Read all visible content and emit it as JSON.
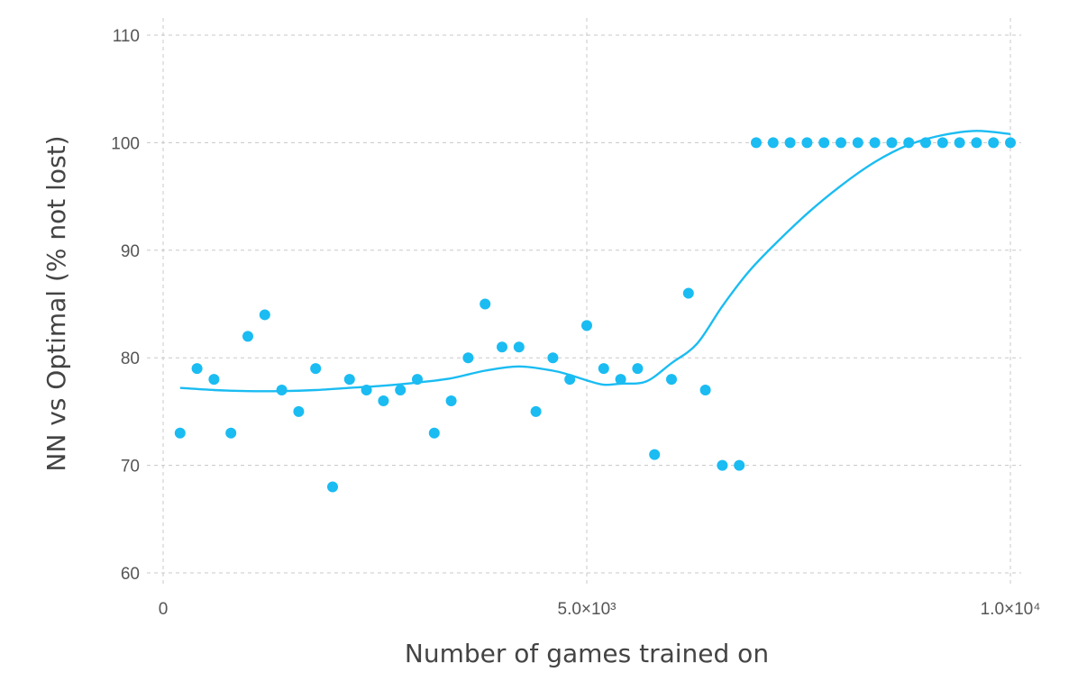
{
  "chart_data": {
    "type": "scatter",
    "xlabel": "Number of games trained on",
    "ylabel": "NN vs Optimal (% not lost)",
    "xlim": [
      0,
      10000
    ],
    "ylim": [
      60,
      110
    ],
    "x_ticks": [
      {
        "value": 0,
        "label": "0"
      },
      {
        "value": 5000,
        "label": "5.0×10³"
      },
      {
        "value": 10000,
        "label": "1.0×10⁴"
      }
    ],
    "y_ticks": [
      {
        "value": 60,
        "label": "60"
      },
      {
        "value": 70,
        "label": "70"
      },
      {
        "value": 80,
        "label": "80"
      },
      {
        "value": 90,
        "label": "90"
      },
      {
        "value": 100,
        "label": "100"
      },
      {
        "value": 110,
        "label": "110"
      }
    ],
    "grid": true,
    "color": "#1abcf2",
    "series": [
      {
        "kind": "points",
        "x": [
          200,
          400,
          600,
          800,
          1000,
          1200,
          1400,
          1600,
          1800,
          2000,
          2200,
          2400,
          2600,
          2800,
          3000,
          3200,
          3400,
          3600,
          3800,
          4000,
          4200,
          4400,
          4600,
          4800,
          5000,
          5200,
          5400,
          5600,
          5800,
          6000,
          6200,
          6400,
          6600,
          6800,
          7000,
          7200,
          7400,
          7600,
          7800,
          8000,
          8200,
          8400,
          8600,
          8800,
          9000,
          9200,
          9400,
          9600,
          9800,
          10000
        ],
        "y": [
          73,
          79,
          78,
          73,
          82,
          84,
          77,
          75,
          79,
          68,
          78,
          77,
          76,
          77,
          78,
          73,
          76,
          80,
          85,
          81,
          81,
          75,
          80,
          78,
          83,
          79,
          78,
          79,
          71,
          78,
          86,
          77,
          70,
          70,
          100,
          100,
          100,
          100,
          100,
          100,
          100,
          100,
          100,
          100,
          100,
          100,
          100,
          100,
          100,
          100
        ]
      },
      {
        "kind": "smooth",
        "x": [
          200,
          600,
          1000,
          1400,
          1800,
          2200,
          2600,
          3000,
          3400,
          3800,
          4200,
          4600,
          4800,
          5000,
          5200,
          5400,
          5700,
          6000,
          6300,
          6600,
          6900,
          7200,
          7600,
          8000,
          8400,
          8800,
          9200,
          9600,
          10000
        ],
        "y": [
          77.2,
          77.0,
          76.9,
          76.9,
          77.0,
          77.2,
          77.4,
          77.7,
          78.1,
          78.8,
          79.2,
          78.8,
          78.4,
          77.9,
          77.5,
          77.6,
          77.8,
          79.5,
          81.3,
          84.8,
          87.9,
          90.4,
          93.4,
          96.0,
          98.2,
          99.8,
          100.7,
          101.1,
          100.8
        ]
      }
    ]
  }
}
